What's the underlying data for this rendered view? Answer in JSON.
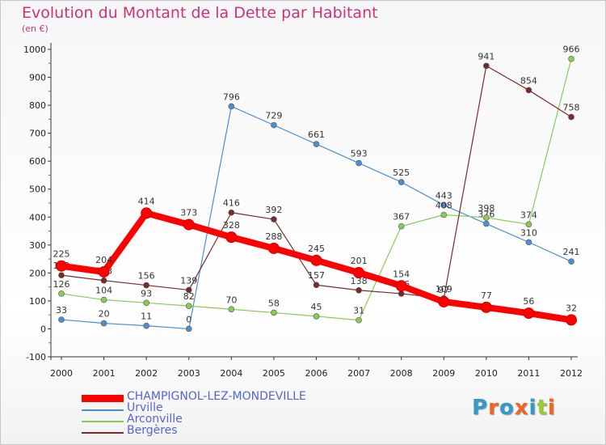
{
  "title": "Evolution du Montant de la Dette par Habitant",
  "unit": "(en €)",
  "logo": "Proxiti",
  "chart_data": {
    "type": "line",
    "x": [
      "2000",
      "2001",
      "2002",
      "2003",
      "2004",
      "2005",
      "2006",
      "2007",
      "2008",
      "2009",
      "2010",
      "2011",
      "2012"
    ],
    "ylim": [
      -100,
      1000
    ],
    "yticks": [
      "-100",
      "0",
      "100",
      "200",
      "300",
      "400",
      "500",
      "600",
      "700",
      "800",
      "900",
      "1000"
    ],
    "grid": false,
    "legend_position": "bottom-left",
    "series": [
      {
        "name": "Urville",
        "color": "#4a8fd1",
        "values": [
          33,
          20,
          11,
          0,
          796,
          729,
          661,
          593,
          525,
          443,
          376,
          310,
          241
        ],
        "labels": [
          "33",
          "20",
          "11",
          "0",
          "796",
          "729",
          "661",
          "593",
          "525",
          "443",
          "376",
          "310",
          "241"
        ]
      },
      {
        "name": "Arconville",
        "color": "#88cc55",
        "values": [
          126,
          104,
          93,
          82,
          70,
          58,
          45,
          31,
          367,
          408,
          398,
          374,
          966
        ],
        "labels": [
          "126",
          "104",
          "93",
          "82",
          "70",
          "58",
          "45",
          "31",
          "367",
          "408",
          "398",
          "374",
          "966"
        ]
      },
      {
        "name": "Bergères",
        "color": "#7a2a2a",
        "values": [
          192,
          173,
          156,
          139,
          416,
          392,
          157,
          138,
          126,
          109,
          941,
          854,
          758
        ],
        "labels": [
          "192",
          "173",
          "156",
          "139",
          "416",
          "392",
          "157",
          "138",
          "126",
          "109",
          "941",
          "854",
          "758"
        ]
      },
      {
        "name": "CHAMPIGNOL-LEZ-MONDEVILLE",
        "color": "#ff0000",
        "values": [
          225,
          204,
          414,
          373,
          328,
          288,
          245,
          201,
          154,
          97,
          77,
          56,
          32
        ],
        "labels": [
          "225",
          "204",
          "414",
          "373",
          "328",
          "288",
          "245",
          "201",
          "154",
          "97",
          "77",
          "56",
          "32"
        ]
      }
    ]
  },
  "legend": [
    {
      "name": "CHAMPIGNOL-LEZ-MONDEVILLE",
      "color": "#ff0000",
      "thick": true
    },
    {
      "name": "Urville",
      "color": "#4a8fd1",
      "thick": false
    },
    {
      "name": "Arconville",
      "color": "#88cc55",
      "thick": false
    },
    {
      "name": "Bergères",
      "color": "#7a2a2a",
      "thick": false
    }
  ]
}
